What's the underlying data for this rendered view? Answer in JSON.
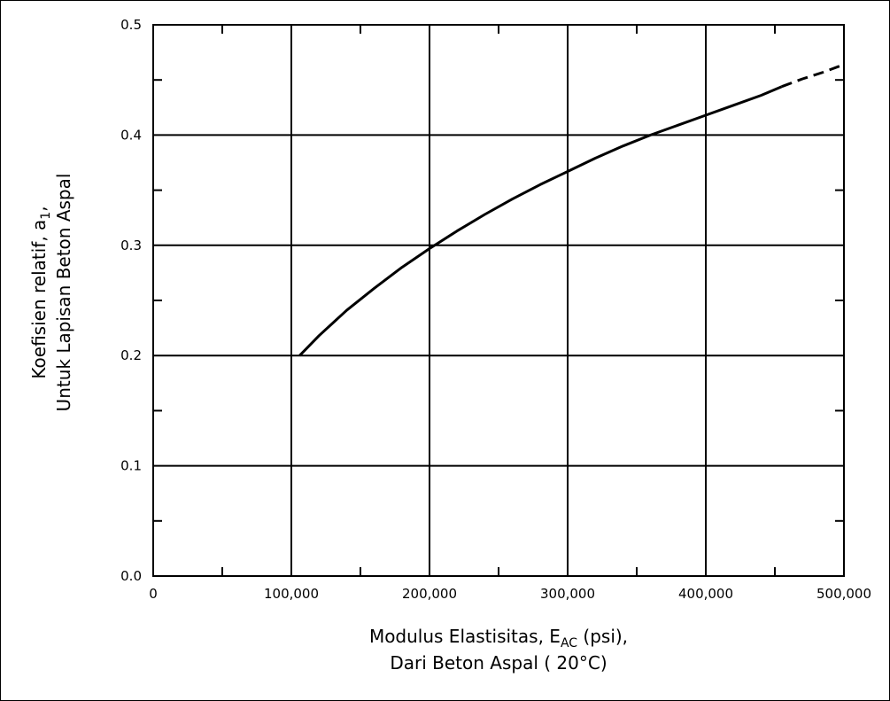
{
  "chart_data": {
    "type": "line",
    "title": "",
    "xlabel": {
      "line1_prefix": "Modulus Elastisitas, E",
      "line1_subscript": "AC",
      "line1_suffix": " (psi),",
      "line2": "Dari Beton Aspal ( 20°C)"
    },
    "ylabel": {
      "line1_prefix": "Koefisien relatif, a",
      "line1_subscript": "1",
      "line1_suffix": ",",
      "line2": "Untuk Lapisan Beton Aspal"
    },
    "xlim": [
      0,
      500000
    ],
    "ylim": [
      0,
      0.5
    ],
    "x_ticks": [
      0,
      100000,
      200000,
      300000,
      400000,
      500000
    ],
    "x_tick_labels": [
      "0",
      "100,000",
      "200,000",
      "300,000",
      "400,000",
      "500,000"
    ],
    "y_ticks": [
      0,
      0.1,
      0.2,
      0.3,
      0.4,
      0.5
    ],
    "y_tick_labels": [
      "0.0",
      "0.1",
      "0.2",
      "0.3",
      "0.4",
      "0.5"
    ],
    "x_minor_ticks": [
      50000,
      150000,
      250000,
      350000,
      450000
    ],
    "y_minor_ticks": [
      0.05,
      0.15,
      0.25,
      0.35,
      0.45
    ],
    "grid": true,
    "series": [
      {
        "style": "solid",
        "x": [
          106000,
          120000,
          140000,
          160000,
          180000,
          200000,
          220000,
          240000,
          260000,
          280000,
          300000,
          320000,
          340000,
          360000,
          380000,
          400000,
          420000,
          440000,
          455000
        ],
        "y": [
          0.2,
          0.218,
          0.241,
          0.261,
          0.28,
          0.297,
          0.313,
          0.328,
          0.342,
          0.355,
          0.367,
          0.379,
          0.39,
          0.4,
          0.409,
          0.418,
          0.427,
          0.436,
          0.444
        ]
      },
      {
        "style": "dashed",
        "x": [
          455000,
          470000,
          485000,
          500000
        ],
        "y": [
          0.444,
          0.451,
          0.457,
          0.464
        ]
      }
    ],
    "colors": {
      "line": "#000000",
      "grid": "#000000"
    }
  }
}
